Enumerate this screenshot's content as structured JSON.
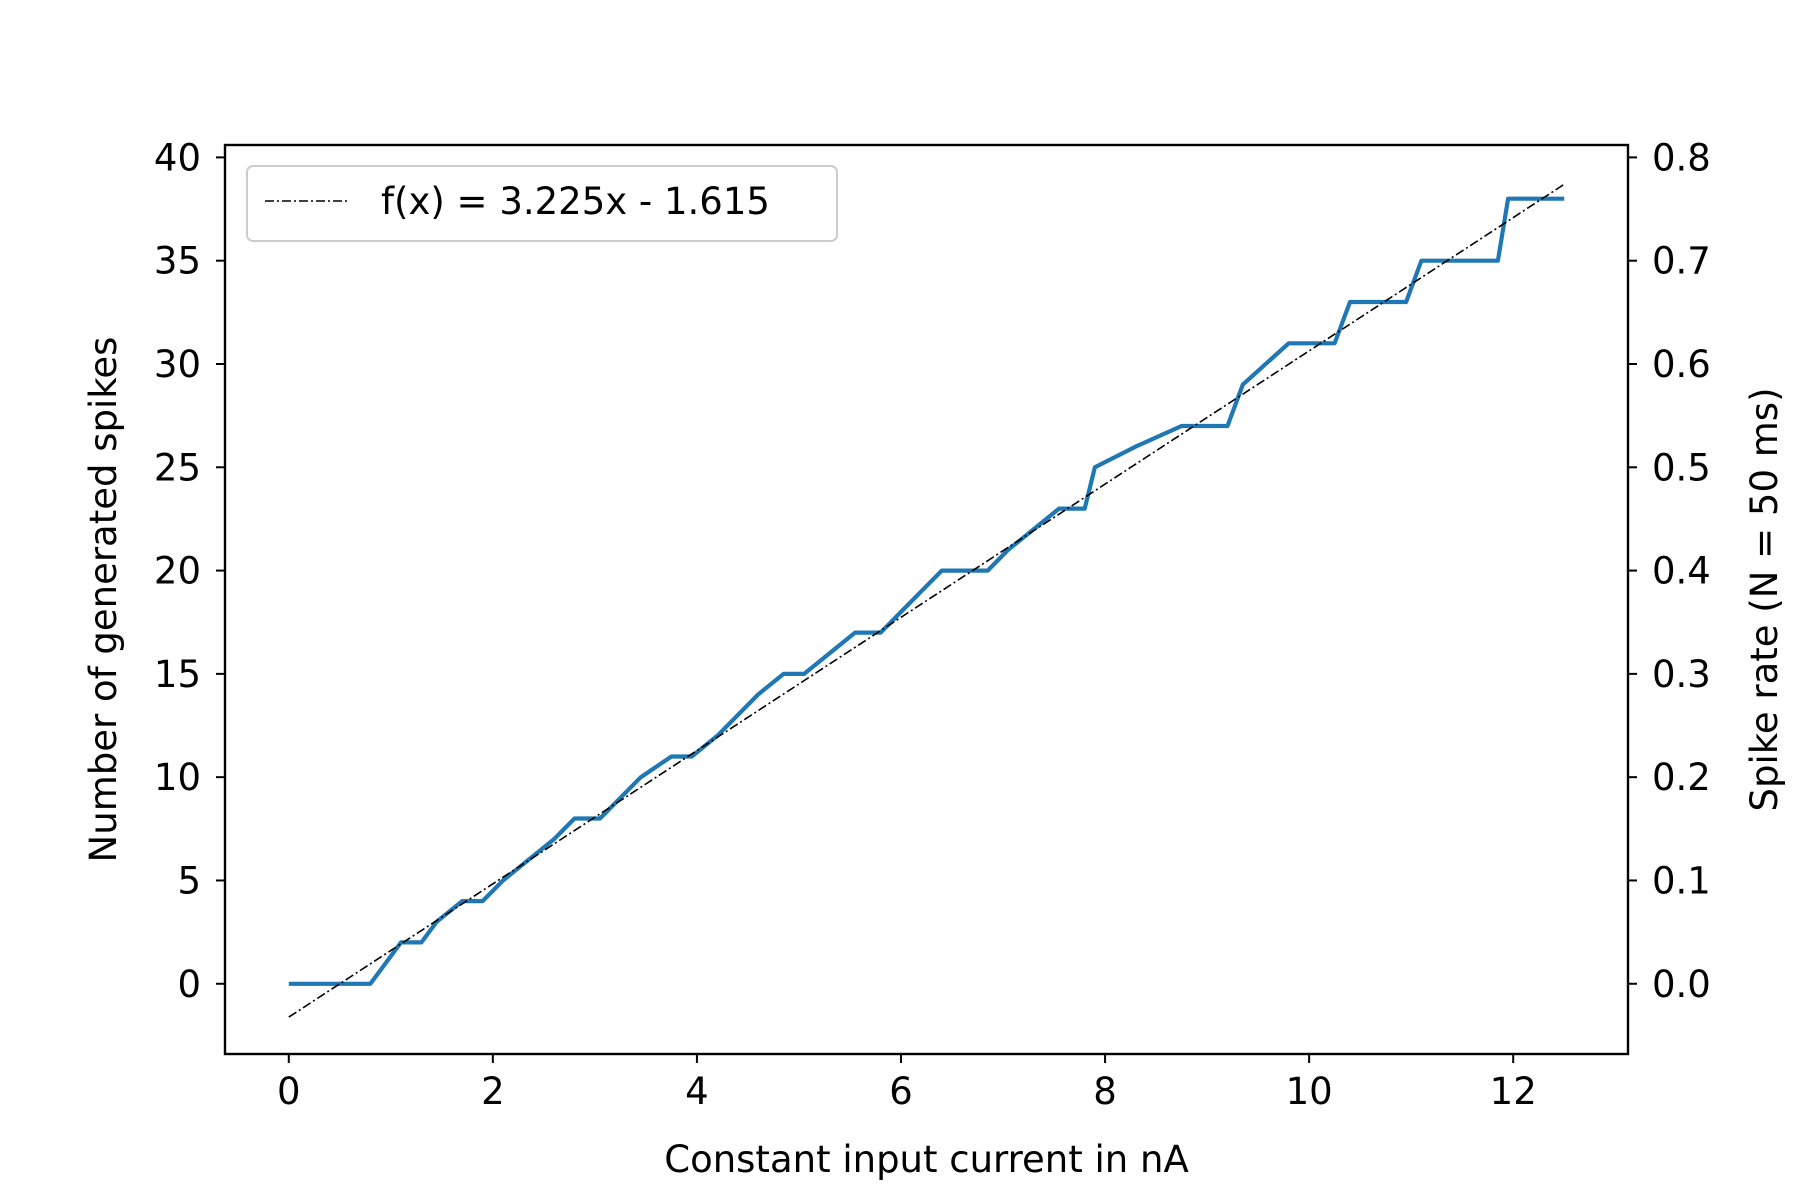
{
  "chart_data": {
    "type": "line",
    "xlabel": "Constant input current in nA",
    "ylabel": "Number of generated spikes",
    "y2label": "Spike rate (N = 50 ms)",
    "xlim": [
      -0.625,
      13.125
    ],
    "ylim": [
      -3.4,
      40.6
    ],
    "y2lim": [
      -0.068,
      0.812
    ],
    "xticks": [
      0,
      2,
      4,
      6,
      8,
      10,
      12
    ],
    "yticks": [
      0,
      5,
      10,
      15,
      20,
      25,
      30,
      35,
      40
    ],
    "y2ticks": [
      "0.0",
      "0.1",
      "0.2",
      "0.3",
      "0.4",
      "0.5",
      "0.6",
      "0.7",
      "0.8"
    ],
    "grid": false,
    "legend_position": "top-left",
    "series": [
      {
        "name": "",
        "color": "#1f77b4",
        "style": "solid",
        "x": [
          0.0,
          0.8,
          0.95,
          1.1,
          1.3,
          1.45,
          1.7,
          1.9,
          2.1,
          2.35,
          2.6,
          2.8,
          3.05,
          3.25,
          3.45,
          3.75,
          3.95,
          4.2,
          4.4,
          4.6,
          4.85,
          5.05,
          5.3,
          5.55,
          5.8,
          6.0,
          6.2,
          6.4,
          6.85,
          7.05,
          7.3,
          7.55,
          7.8,
          7.9,
          8.3,
          8.75,
          9.2,
          9.35,
          9.8,
          10.25,
          10.4,
          10.95,
          11.1,
          11.85,
          11.95,
          12.5
        ],
        "y": [
          0,
          0,
          1,
          2,
          2,
          3,
          4,
          4,
          5,
          6,
          7,
          8,
          8,
          9,
          10,
          11,
          11,
          12,
          13,
          14,
          15,
          15,
          16,
          17,
          17,
          18,
          19,
          20,
          20,
          21,
          22,
          23,
          23,
          25,
          26,
          27,
          27,
          29,
          31,
          31,
          33,
          33,
          35,
          35,
          38,
          38
        ]
      },
      {
        "name": "f(x) = 3.225x - 1.615",
        "color": "#000000",
        "style": "dashdot",
        "x": [
          0,
          12.5
        ],
        "y": [
          -1.615,
          38.6975
        ]
      }
    ]
  }
}
